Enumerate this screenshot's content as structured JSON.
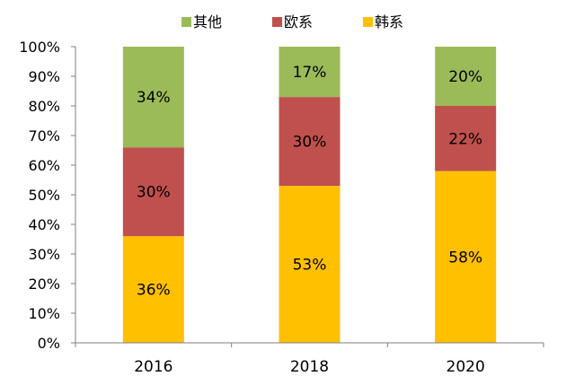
{
  "chart_data": {
    "type": "bar",
    "stacked": true,
    "categories": [
      "2016",
      "2018",
      "2020"
    ],
    "series": [
      {
        "name": "韩系",
        "color": "#FFC000",
        "values": [
          36,
          53,
          58
        ],
        "labels": [
          "36%",
          "53%",
          "58%"
        ]
      },
      {
        "name": "欧系",
        "color": "#C0504D",
        "values": [
          30,
          30,
          22
        ],
        "labels": [
          "30%",
          "30%",
          "22%"
        ]
      },
      {
        "name": "其他",
        "color": "#9BBB59",
        "values": [
          34,
          17,
          20
        ],
        "labels": [
          "34%",
          "17%",
          "20%"
        ]
      }
    ],
    "legend_order": [
      "其他",
      "欧系",
      "韩系"
    ],
    "legend_position": "top",
    "ylim": [
      0,
      100
    ],
    "yticks": [
      0,
      10,
      20,
      30,
      40,
      50,
      60,
      70,
      80,
      90,
      100
    ],
    "ytick_labels": [
      "0%",
      "10%",
      "20%",
      "30%",
      "40%",
      "50%",
      "60%",
      "70%",
      "80%",
      "90%",
      "100%"
    ],
    "grid": false
  }
}
